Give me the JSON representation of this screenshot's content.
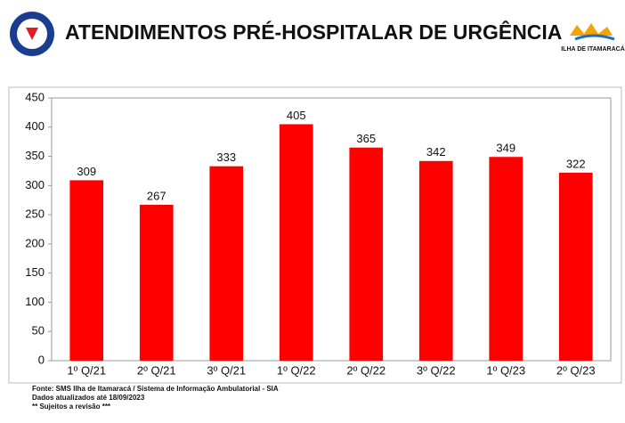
{
  "chart_data": {
    "type": "bar",
    "title": "ATENDIMENTOS PRÉ-HOSPITALAR DE URGÊNCIA",
    "logo_text": "ILHA DE ITAMARACÁ",
    "categories": [
      "1º Q/21",
      "2º Q/21",
      "3º Q/21",
      "1º Q/22",
      "2º Q/22",
      "3º Q/22",
      "1º Q/23",
      "2º Q/23"
    ],
    "values": [
      309,
      267,
      333,
      405,
      365,
      342,
      349,
      322
    ],
    "color": "#ff0000",
    "ylim": [
      0,
      450
    ],
    "yticks": [
      0,
      50,
      100,
      150,
      200,
      250,
      300,
      350,
      400,
      450
    ],
    "grid": false,
    "notes": [
      "Fonte: SMS Ilha de Itamaracá / Sistema de Informação Ambulatorial - SIA",
      "Dados atualizados até 18/09/2023",
      "** Sujeitos a revisão ***"
    ]
  }
}
